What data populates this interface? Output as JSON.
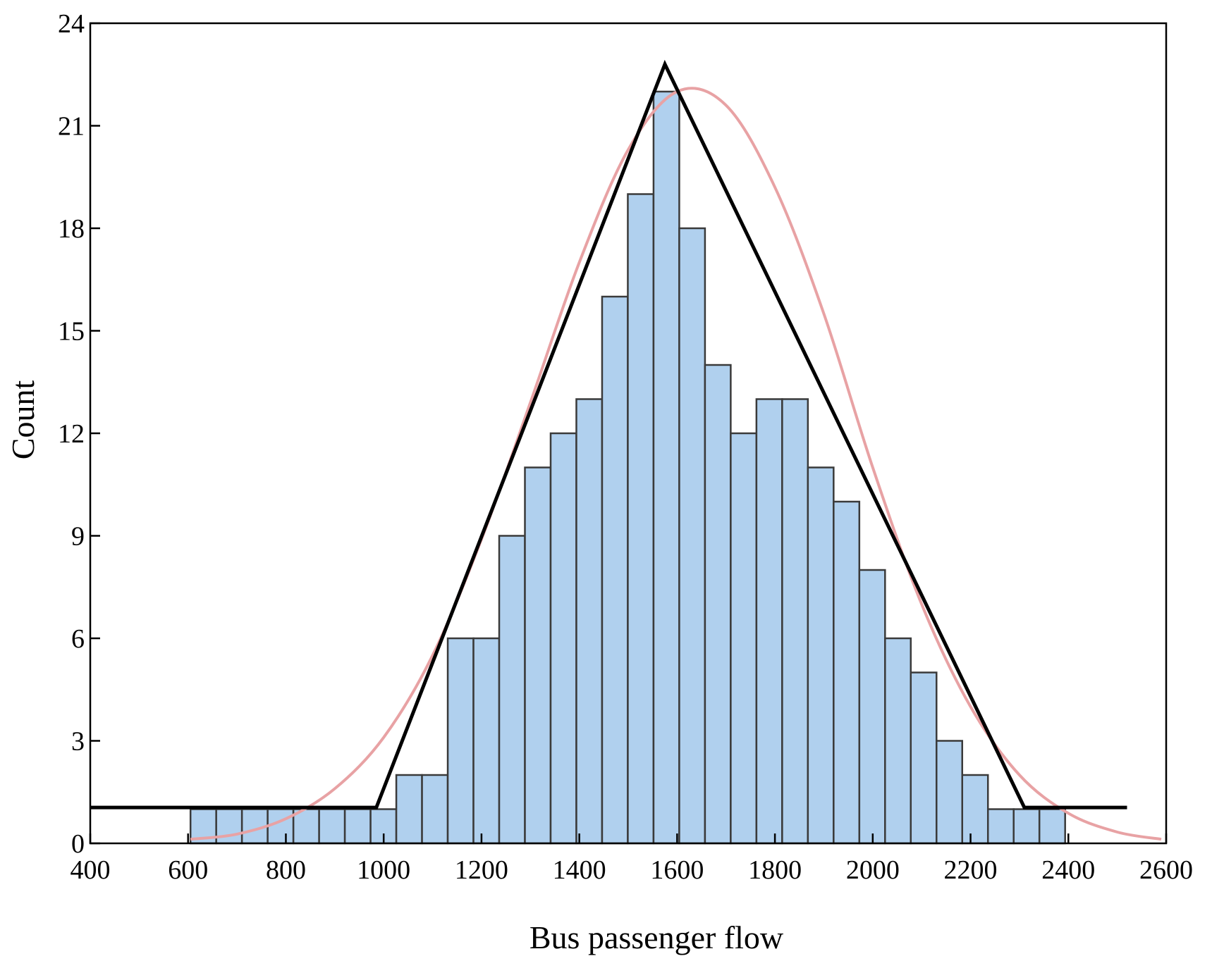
{
  "chart_data": {
    "type": "bar",
    "title": "",
    "xlabel": "Bus passenger flow",
    "ylabel": "Count",
    "xlim": [
      400,
      2600
    ],
    "ylim": [
      0,
      24
    ],
    "x_ticks": [
      "400",
      "600",
      "800",
      "1000",
      "1200",
      "1400",
      "1600",
      "1800",
      "2000",
      "2200",
      "2400",
      "2600"
    ],
    "y_ticks": [
      "0",
      "3",
      "6",
      "9",
      "12",
      "15",
      "18",
      "21",
      "24"
    ],
    "grid": false,
    "bins": {
      "start": 605,
      "width": 52.6,
      "counts": [
        1,
        1,
        1,
        1,
        1,
        1,
        1,
        1,
        2,
        2,
        6,
        6,
        9,
        11,
        12,
        13,
        16,
        19,
        22,
        18,
        14,
        12,
        13,
        13,
        11,
        10,
        8,
        6,
        5,
        3,
        2,
        1,
        1,
        1
      ]
    },
    "bar_color": "#b0d0ee",
    "series": [
      {
        "type": "line",
        "color": "#000000",
        "x": [
          400,
          985,
          1575,
          2310,
          2520
        ],
        "y": [
          1.05,
          1.05,
          22.8,
          1.05,
          1.05
        ]
      },
      {
        "type": "line",
        "color": "#e8a2a4",
        "x": [
          605,
          700,
          800,
          900,
          1000,
          1100,
          1200,
          1300,
          1400,
          1500,
          1600,
          1700,
          1800,
          1900,
          2000,
          2100,
          2200,
          2300,
          2400,
          2500,
          2590
        ],
        "y": [
          0.12,
          0.27,
          0.72,
          1.6,
          3.1,
          5.5,
          8.9,
          12.9,
          17.0,
          20.3,
          22.0,
          21.6,
          19.2,
          15.5,
          11.0,
          7.0,
          4.0,
          2.0,
          0.88,
          0.33,
          0.12
        ]
      }
    ]
  }
}
